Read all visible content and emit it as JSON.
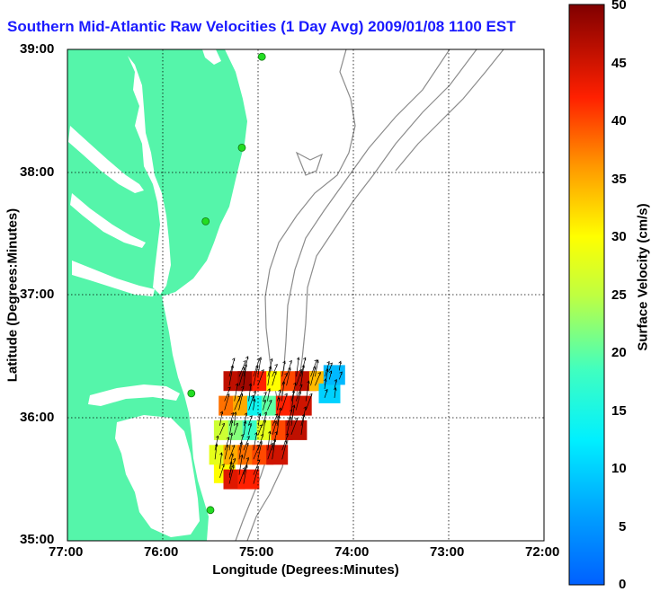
{
  "title": "Southern Mid-Atlantic Raw Velocities (1 Day Avg) 2009/01/08 1100 EST",
  "x_axis": {
    "label": "Longitude (Degrees:Minutes)",
    "ticks": [
      "77:00",
      "76:00",
      "75:00",
      "74:00",
      "73:00",
      "72:00"
    ]
  },
  "y_axis": {
    "label": "Latitude (Degrees:Minutes)",
    "ticks": [
      "39:00",
      "38:00",
      "37:00",
      "36:00",
      "35:00"
    ]
  },
  "colorbar": {
    "label": "Surface Velocity (cm/s)",
    "ticks": [
      "50",
      "45",
      "40",
      "35",
      "30",
      "25",
      "20",
      "15",
      "10",
      "5",
      "0"
    ],
    "min": 0,
    "max": 50
  },
  "colors": {
    "land": "#55f5aa",
    "title": "#1a1aff",
    "bathymetry": "#8c8c8c",
    "grid": "#000000",
    "site_marker": "#22dd22"
  },
  "chart_data": {
    "type": "heatmap",
    "title": "Southern Mid-Atlantic Raw Velocities (1 Day Avg) 2009/01/08 1100 EST",
    "xlabel": "Longitude (Degrees:Minutes)",
    "ylabel": "Latitude (Degrees:Minutes)",
    "colorbar_label": "Surface Velocity (cm/s)",
    "xlim": [
      -77.0,
      -72.0
    ],
    "ylim": [
      35.0,
      39.0
    ],
    "clim": [
      0,
      50
    ],
    "grid": true,
    "radar_sites": [
      {
        "lon": -74.96,
        "lat": 38.94
      },
      {
        "lon": -75.17,
        "lat": 38.2
      },
      {
        "lon": -75.55,
        "lat": 37.6
      },
      {
        "lon": -75.7,
        "lat": 36.2
      },
      {
        "lon": -75.5,
        "lat": 35.25
      }
    ],
    "velocity_cells": [
      {
        "lon": -75.35,
        "lat": 35.55,
        "speed": 30
      },
      {
        "lon": -75.25,
        "lat": 35.5,
        "speed": 44
      },
      {
        "lon": -75.1,
        "lat": 35.5,
        "speed": 42
      },
      {
        "lon": -75.4,
        "lat": 35.7,
        "speed": 28
      },
      {
        "lon": -75.25,
        "lat": 35.7,
        "speed": 35
      },
      {
        "lon": -75.1,
        "lat": 35.7,
        "speed": 38
      },
      {
        "lon": -74.95,
        "lat": 35.7,
        "speed": 40
      },
      {
        "lon": -74.8,
        "lat": 35.7,
        "speed": 45
      },
      {
        "lon": -75.35,
        "lat": 35.9,
        "speed": 26
      },
      {
        "lon": -75.2,
        "lat": 35.9,
        "speed": 22
      },
      {
        "lon": -75.05,
        "lat": 35.9,
        "speed": 18
      },
      {
        "lon": -74.9,
        "lat": 35.9,
        "speed": 28
      },
      {
        "lon": -74.75,
        "lat": 35.9,
        "speed": 40
      },
      {
        "lon": -74.6,
        "lat": 35.9,
        "speed": 46
      },
      {
        "lon": -75.3,
        "lat": 36.1,
        "speed": 38
      },
      {
        "lon": -75.15,
        "lat": 36.1,
        "speed": 35
      },
      {
        "lon": -75.0,
        "lat": 36.1,
        "speed": 14
      },
      {
        "lon": -74.85,
        "lat": 36.1,
        "speed": 20
      },
      {
        "lon": -74.7,
        "lat": 36.1,
        "speed": 42
      },
      {
        "lon": -74.55,
        "lat": 36.1,
        "speed": 45
      },
      {
        "lon": -75.25,
        "lat": 36.3,
        "speed": 46
      },
      {
        "lon": -75.1,
        "lat": 36.3,
        "speed": 48
      },
      {
        "lon": -74.95,
        "lat": 36.3,
        "speed": 42
      },
      {
        "lon": -74.8,
        "lat": 36.3,
        "speed": 30
      },
      {
        "lon": -74.65,
        "lat": 36.3,
        "speed": 40
      },
      {
        "lon": -74.5,
        "lat": 36.3,
        "speed": 46
      },
      {
        "lon": -74.35,
        "lat": 36.3,
        "speed": 34
      },
      {
        "lon": -74.25,
        "lat": 36.2,
        "speed": 10
      },
      {
        "lon": -74.2,
        "lat": 36.35,
        "speed": 8
      }
    ]
  }
}
